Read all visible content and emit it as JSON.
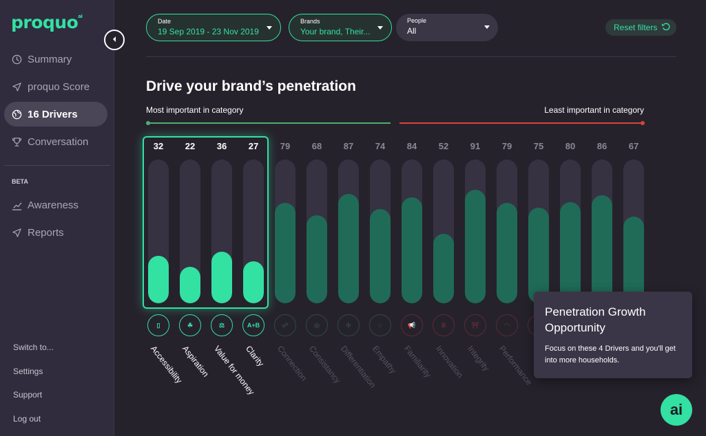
{
  "app": {
    "logo": "proquo",
    "logo_mark": "ai"
  },
  "sidebar": {
    "items": [
      {
        "label": "Summary",
        "icon": "clock-icon",
        "active": false
      },
      {
        "label": "proquo Score",
        "icon": "paper-plane-icon",
        "active": false
      },
      {
        "label": "16 Drivers",
        "icon": "globe-icon",
        "active": true
      },
      {
        "label": "Conversation",
        "icon": "trophy-icon",
        "active": false
      }
    ],
    "beta_label": "BETA",
    "beta_items": [
      {
        "label": "Awareness",
        "icon": "chart-up-icon"
      },
      {
        "label": "Reports",
        "icon": "paper-plane-icon"
      }
    ],
    "bottom_links": [
      "Switch to...",
      "Settings",
      "Support",
      "Log out"
    ]
  },
  "filters": {
    "date": {
      "label": "Date",
      "value": "19 Sep 2019 - 23 Nov 2019"
    },
    "brands": {
      "label": "Brands",
      "value": "Your brand, Their..."
    },
    "people": {
      "label": "People",
      "value": "All"
    },
    "reset_label": "Reset filters"
  },
  "main": {
    "title": "Drive your brand’s penetration",
    "most_label": "Most important in category",
    "least_label": "Least important in category"
  },
  "chart_data": {
    "type": "bar",
    "categories": [
      "Accessibility",
      "Aspiration",
      "Value for money",
      "Clarity",
      "Connection",
      "Consistancy",
      "Differentiation",
      "Empathy",
      "Familiarity",
      "Innovation",
      "Integrity",
      "Performance",
      "",
      "",
      "",
      ""
    ],
    "values": [
      32,
      22,
      36,
      27,
      79,
      68,
      87,
      74,
      84,
      52,
      91,
      79,
      75,
      80,
      86,
      67
    ],
    "highlighted": [
      0,
      1,
      2,
      3
    ],
    "icon_labels": [
      "",
      "",
      "",
      "A+B",
      "",
      "",
      "",
      "",
      "",
      "",
      "",
      "",
      "",
      "",
      "",
      ""
    ],
    "ylim": [
      0,
      100
    ],
    "colors": {
      "highlight": "#33e1a2",
      "muted": "#1f6b58",
      "background": "#363241"
    }
  },
  "tooltip": {
    "title": "Penetration Growth Opportunity",
    "body": "Focus on these 4 Drivers and you'll get into more households."
  }
}
